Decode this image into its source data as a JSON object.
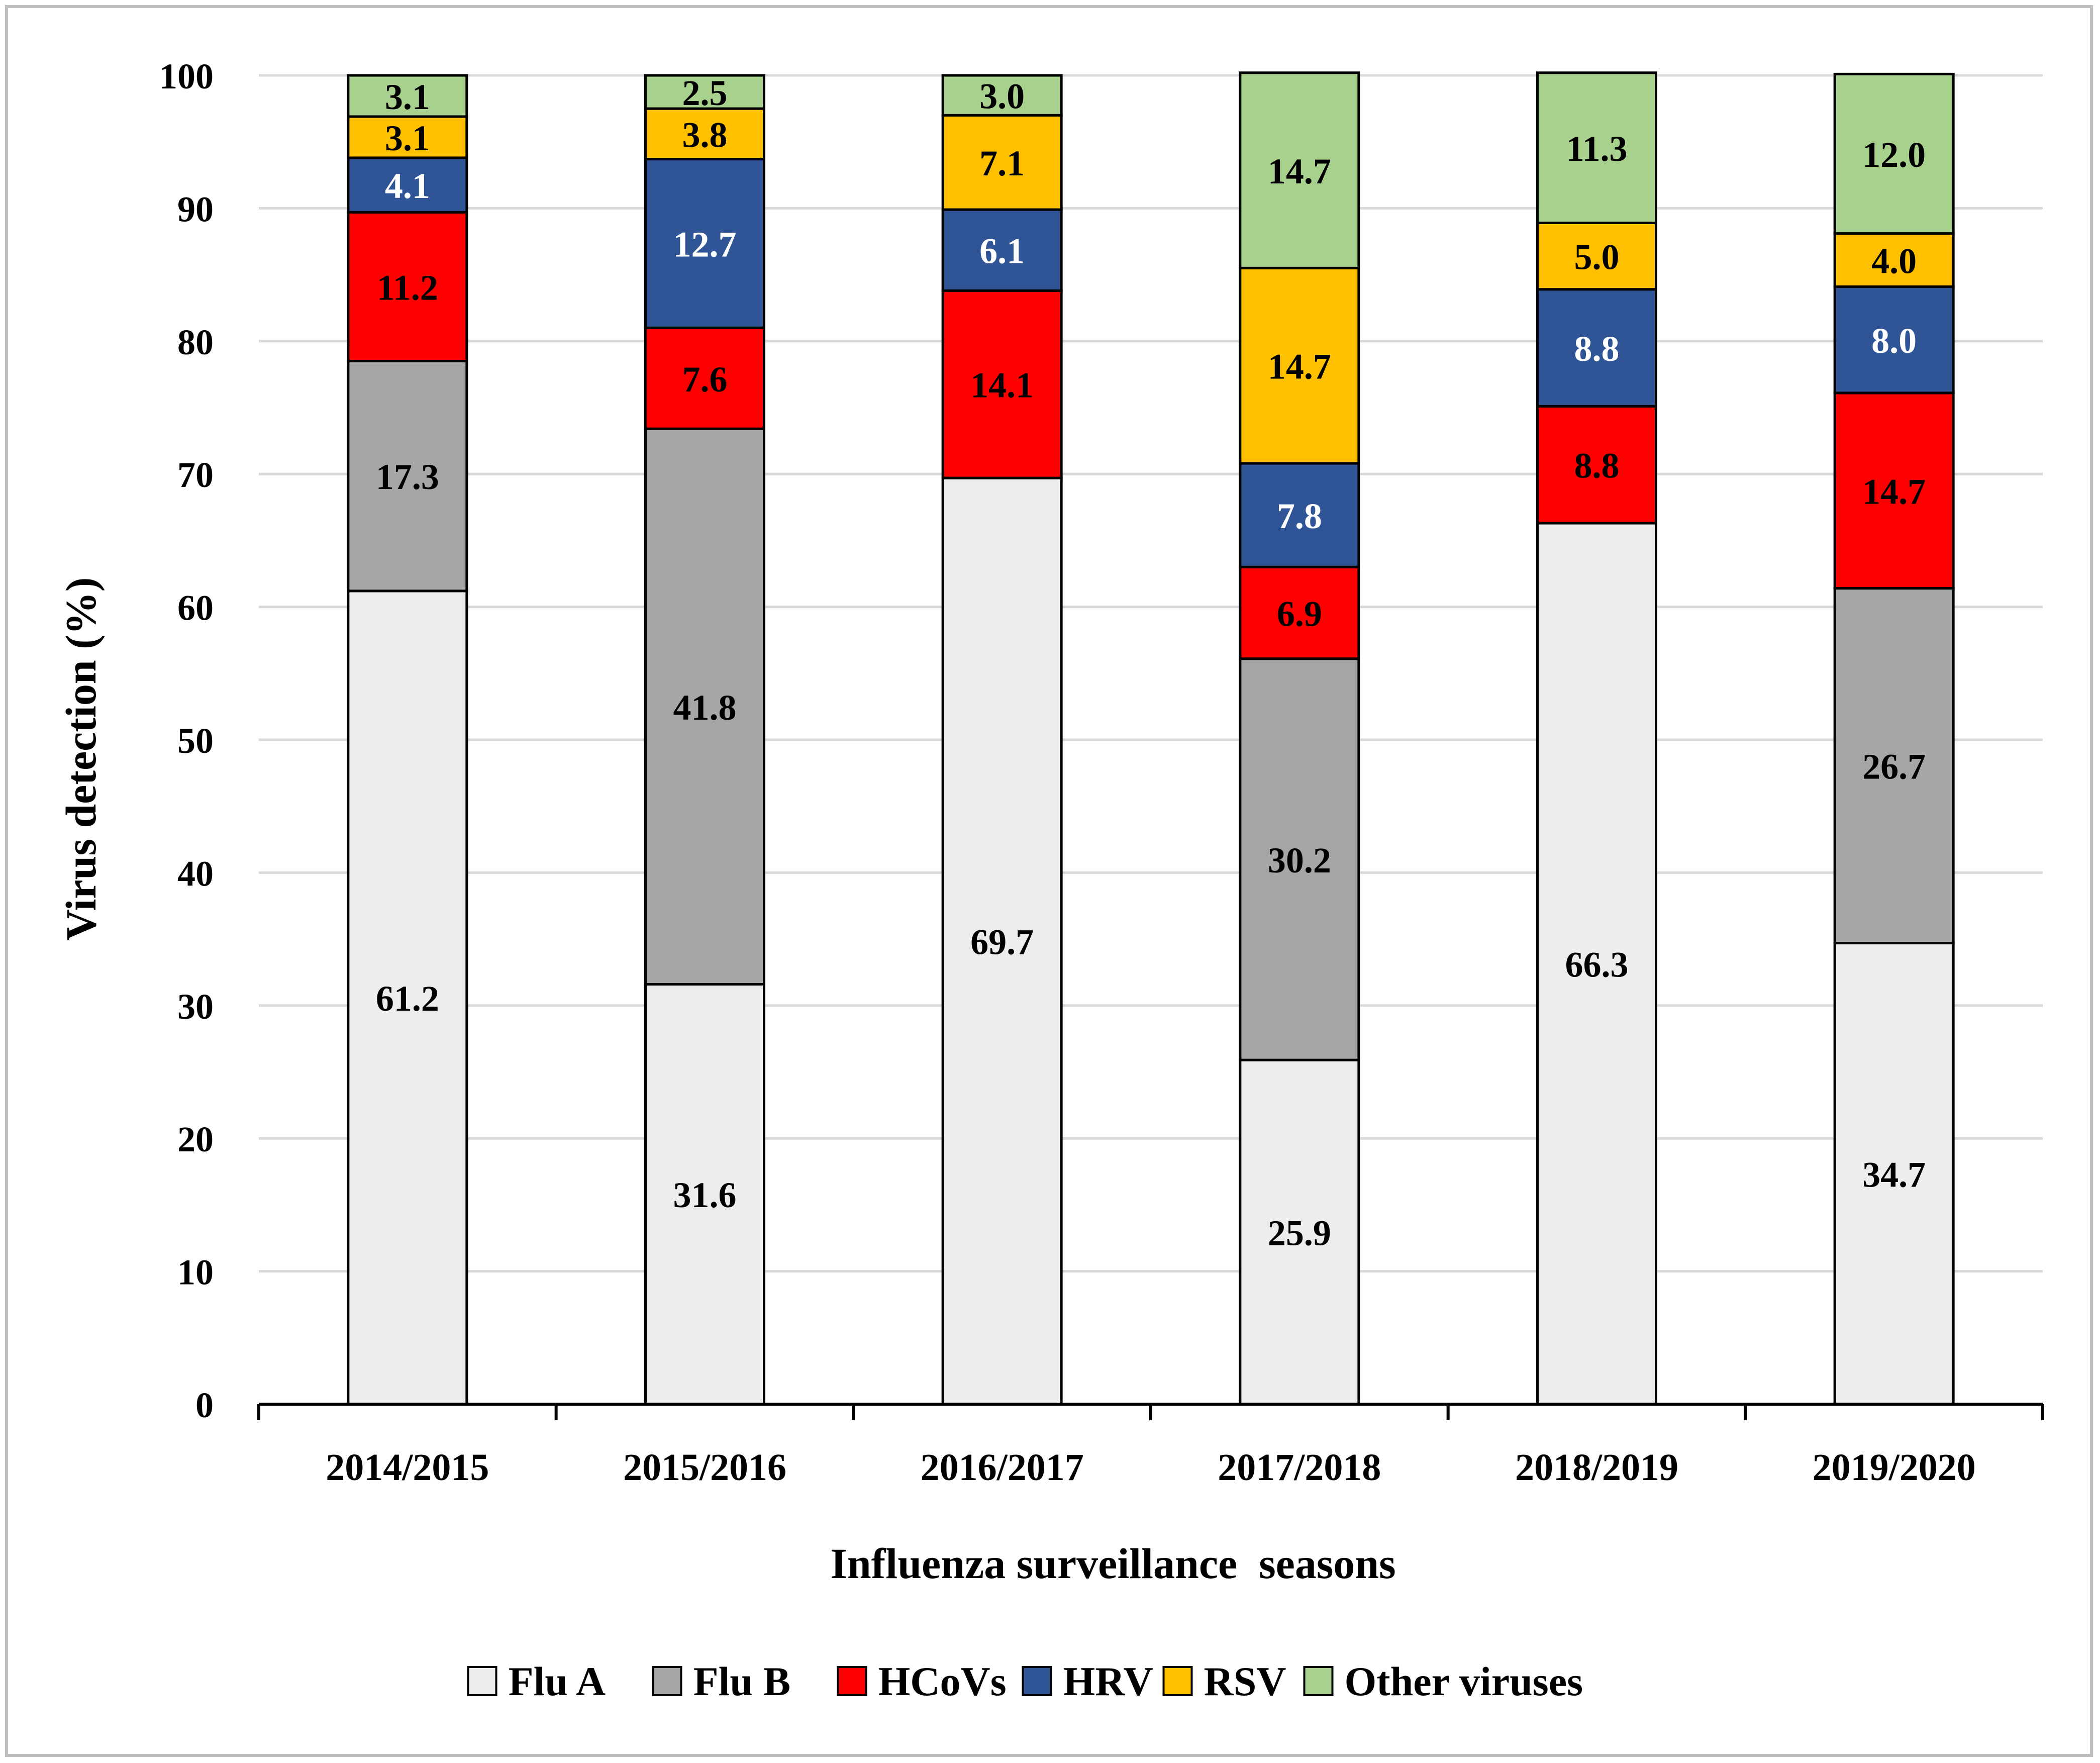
{
  "chart_data": {
    "type": "stacked-bar",
    "title": "",
    "xlabel": "Influenza surveillance  seasons",
    "ylabel": "Virus detection  (%)",
    "ylim": [
      0,
      100
    ],
    "yticks": [
      0,
      10,
      20,
      30,
      40,
      50,
      60,
      70,
      80,
      90,
      100
    ],
    "ytick_labels": [
      "0",
      "10",
      "20",
      "30",
      "40",
      "50",
      "60",
      "70",
      "80",
      "90",
      "100"
    ],
    "grid": true,
    "legend_position": "bottom",
    "categories": [
      "2014/2015",
      "2015/2016",
      "2016/2017",
      "2017/2018",
      "2018/2019",
      "2019/2020"
    ],
    "series": [
      {
        "name": "Flu A",
        "color": "#ededed",
        "label_color": "#000000",
        "values": [
          61.2,
          31.6,
          69.7,
          25.9,
          66.3,
          34.7
        ],
        "labels": [
          "61.2",
          "31.6",
          "69.7",
          "25.9",
          "66.3",
          "34.7"
        ]
      },
      {
        "name": "Flu B",
        "color": "#a6a6a6",
        "label_color": "#000000",
        "values": [
          17.3,
          41.8,
          0,
          30.2,
          0,
          26.7
        ],
        "labels": [
          "17.3",
          "41.8",
          "",
          "30.2",
          "",
          "26.7"
        ]
      },
      {
        "name": "HCoVs",
        "color": "#ff0000",
        "label_color": "#000000",
        "values": [
          11.2,
          7.6,
          14.1,
          6.9,
          8.8,
          14.7
        ],
        "labels": [
          "11.2",
          "7.6",
          "14.1",
          "6.9",
          "8.8",
          "14.7"
        ]
      },
      {
        "name": "HRV",
        "color": "#2f5597",
        "label_color": "#ffffff",
        "values": [
          4.1,
          12.7,
          6.1,
          7.8,
          8.8,
          8.0
        ],
        "labels": [
          "4.1",
          "12.7",
          "6.1",
          "7.8",
          "8.8",
          "8.0"
        ]
      },
      {
        "name": "RSV",
        "color": "#ffc000",
        "label_color": "#000000",
        "values": [
          3.1,
          3.8,
          7.1,
          14.7,
          5.0,
          4.0
        ],
        "labels": [
          "3.1",
          "3.8",
          "7.1",
          "14.7",
          "5.0",
          "4.0"
        ]
      },
      {
        "name": "Other viruses",
        "color": "#a9d18e",
        "label_color": "#000000",
        "values": [
          3.1,
          2.5,
          3.0,
          14.7,
          11.3,
          12.0
        ],
        "labels": [
          "3.1",
          "2.5",
          "3.0",
          "14.7",
          "11.3",
          "12.0"
        ]
      }
    ]
  }
}
